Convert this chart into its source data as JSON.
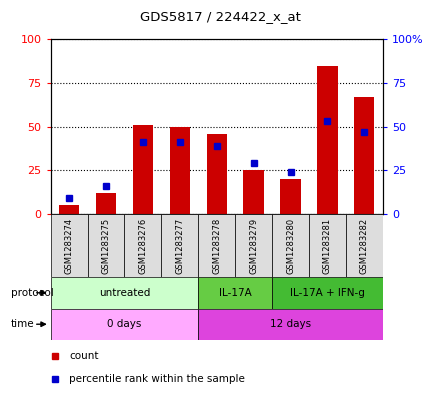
{
  "title": "GDS5817 / 224422_x_at",
  "samples": [
    "GSM1283274",
    "GSM1283275",
    "GSM1283276",
    "GSM1283277",
    "GSM1283278",
    "GSM1283279",
    "GSM1283280",
    "GSM1283281",
    "GSM1283282"
  ],
  "count_values": [
    5,
    12,
    51,
    50,
    46,
    25,
    20,
    85,
    67
  ],
  "percentile_values": [
    9,
    16,
    41,
    41,
    39,
    29,
    24,
    53,
    47
  ],
  "bar_color": "#cc0000",
  "percentile_color": "#0000cc",
  "left_yticks": [
    0,
    25,
    50,
    75,
    100
  ],
  "right_yticks": [
    0,
    25,
    50,
    75,
    100
  ],
  "right_yticklabels": [
    "0",
    "25",
    "50",
    "75",
    "100%"
  ],
  "protocol_groups": [
    {
      "label": "untreated",
      "start": 0,
      "end": 3,
      "color": "#ccffcc"
    },
    {
      "label": "IL-17A",
      "start": 4,
      "end": 5,
      "color": "#66cc44"
    },
    {
      "label": "IL-17A + IFN-g",
      "start": 6,
      "end": 8,
      "color": "#44bb33"
    }
  ],
  "time_groups": [
    {
      "label": "0 days",
      "start": 0,
      "end": 3,
      "color": "#ffaaff"
    },
    {
      "label": "12 days",
      "start": 4,
      "end": 8,
      "color": "#dd44dd"
    }
  ],
  "protocol_label": "protocol",
  "time_label": "time",
  "legend_count": "count",
  "legend_percentile": "percentile rank within the sample",
  "background_color": "#ffffff",
  "sample_box_color": "#dddddd",
  "grid_color": "#000000"
}
